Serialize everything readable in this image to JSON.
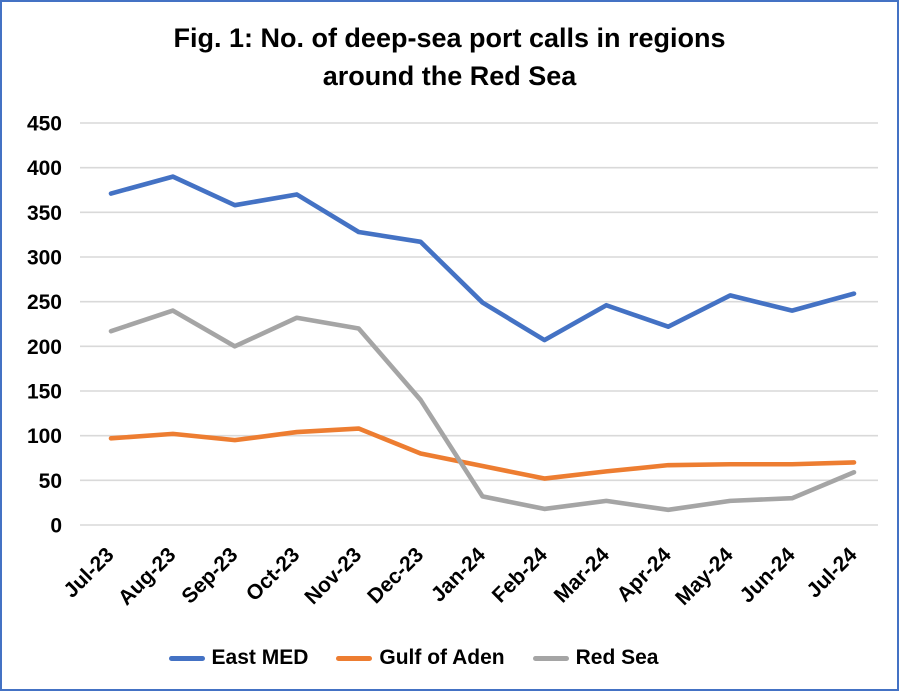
{
  "title_lines": [
    "Fig. 1: No. of deep-sea port calls in regions",
    "around the Red Sea"
  ],
  "chart_data": {
    "type": "line",
    "title": "Fig. 1: No. of deep-sea port calls in regions around the Red Sea",
    "categories": [
      "Jul-23",
      "Aug-23",
      "Sep-23",
      "Oct-23",
      "Nov-23",
      "Dec-23",
      "Jan-24",
      "Feb-24",
      "Mar-24",
      "Apr-24",
      "May-24",
      "Jun-24",
      "Jul-24"
    ],
    "series": [
      {
        "name": "East MED",
        "color": "#4472C4",
        "values": [
          371,
          390,
          358,
          370,
          328,
          317,
          249,
          207,
          246,
          222,
          257,
          240,
          259
        ]
      },
      {
        "name": "Gulf of Aden",
        "color": "#ED7D31",
        "values": [
          97,
          102,
          95,
          104,
          108,
          80,
          66,
          52,
          60,
          67,
          68,
          68,
          70
        ]
      },
      {
        "name": "Red Sea",
        "color": "#A5A5A5",
        "values": [
          217,
          240,
          200,
          232,
          220,
          140,
          32,
          18,
          27,
          17,
          27,
          30,
          59
        ]
      }
    ],
    "xlabel": "",
    "ylabel": "",
    "ylim": [
      0,
      450
    ],
    "ytick_step": 50,
    "grid": true,
    "gridline_color": "#D9D9D9",
    "axis_text_color": "#000000",
    "legend_position": "bottom",
    "frame_border_color": "#4472C4",
    "background_color": "#FFFFFF"
  }
}
